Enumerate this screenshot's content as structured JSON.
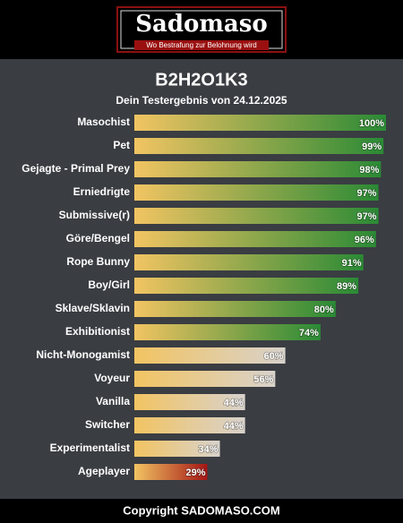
{
  "header": {
    "logo": "Sadomaso",
    "tagline": "Wo Bestrafung zur Belohnung wird"
  },
  "chart_data": {
    "type": "bar",
    "title": "B2H2O1K3",
    "subtitle": "Dein Testergebnis von 24.12.2025",
    "categories": [
      "Masochist",
      "Pet",
      "Gejagte - Primal Prey",
      "Erniedrigte",
      "Submissive(r)",
      "Göre/Bengel",
      "Rope Bunny",
      "Boy/Girl",
      "Sklave/Sklavin",
      "Exhibitionist",
      "Nicht-Monogamist",
      "Voyeur",
      "Vanilla",
      "Switcher",
      "Experimentalist",
      "Ageplayer"
    ],
    "values": [
      100,
      99,
      98,
      97,
      97,
      96,
      91,
      89,
      80,
      74,
      60,
      56,
      44,
      44,
      34,
      29
    ],
    "value_labels": [
      "100%",
      "99%",
      "98%",
      "97%",
      "97%",
      "96%",
      "91%",
      "89%",
      "80%",
      "74%",
      "60%",
      "56%",
      "44%",
      "44%",
      "34%",
      "29%"
    ],
    "gradient_start": "#f2c462",
    "colors": [
      "#2a8a35",
      "#2a8a35",
      "#2a8a35",
      "#2a8a35",
      "#2a8a35",
      "#2a8a35",
      "#2a8a35",
      "#2a8a35",
      "#2a8a35",
      "#2a8a35",
      "#d8d2cc",
      "#d8d2cc",
      "#d8d2cc",
      "#d8d2cc",
      "#d8d2cc",
      "#a31515"
    ],
    "xlim": [
      0,
      100
    ]
  },
  "footer": {
    "text": "Copyright SADOMASO.COM"
  }
}
